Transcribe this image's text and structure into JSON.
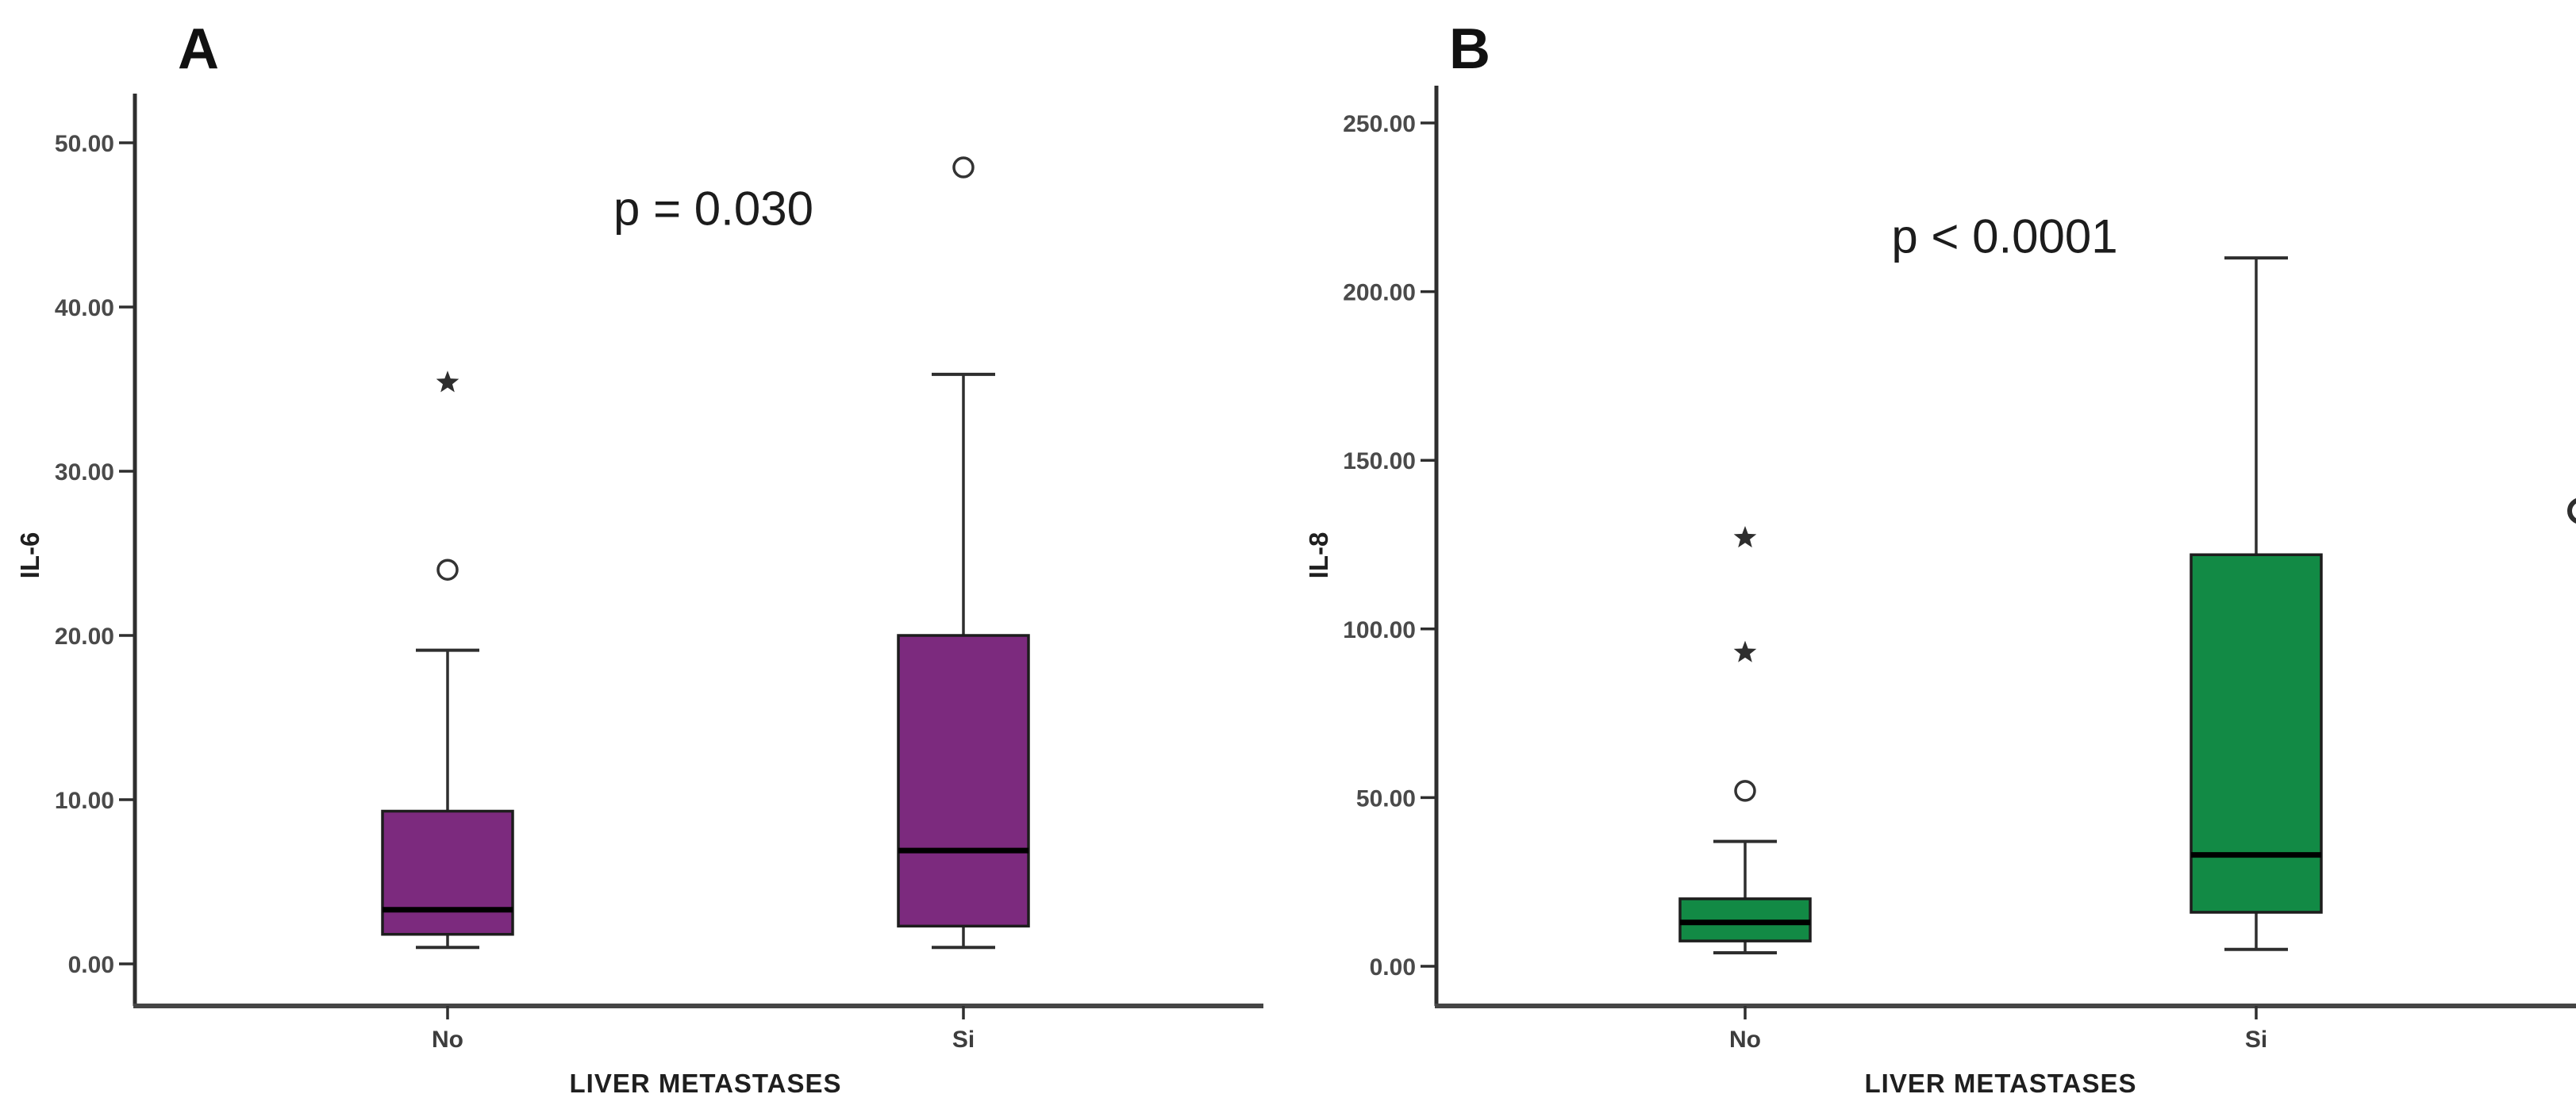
{
  "figure": {
    "background": "#ffffff",
    "axis_color": "#2e2e2e",
    "tick_text_color": "#4a4a4a",
    "category_text_color": "#3d3d3d",
    "box_border_color": "#1d1d1d",
    "median_color": "#000000",
    "outlier_color": "#2e2e2e"
  },
  "chart_data": [
    {
      "type": "box",
      "panel_label": "A",
      "p_label": "p = 0.030",
      "xlabel": "LIVER METASTASES",
      "ylabel": "IL-6",
      "ylim": [
        -2.5,
        53
      ],
      "grid": false,
      "legend": "none",
      "box_color": "#7c2a7e",
      "y_ticks": [
        {
          "value": 0,
          "label": "0.00"
        },
        {
          "value": 10,
          "label": "10.00"
        },
        {
          "value": 20,
          "label": "20.00"
        },
        {
          "value": 30,
          "label": "30.00"
        },
        {
          "value": 40,
          "label": "40.00"
        },
        {
          "value": 50,
          "label": "50.00"
        }
      ],
      "categories": [
        "No",
        "Si"
      ],
      "series": [
        {
          "category": "No",
          "whisker_low": 1.0,
          "q1": 1.8,
          "median": 3.3,
          "q3": 9.3,
          "whisker_high": 19.1,
          "outliers_mild": [
            24.0
          ],
          "outliers_extreme": [
            35.4
          ]
        },
        {
          "category": "Si",
          "whisker_low": 1.0,
          "q1": 2.3,
          "median": 6.9,
          "q3": 20.0,
          "whisker_high": 35.9,
          "outliers_mild": [
            48.5
          ],
          "outliers_extreme": []
        }
      ]
    },
    {
      "type": "box",
      "panel_label": "B",
      "p_label": "p < 0.0001",
      "xlabel": "LIVER METASTASES",
      "ylabel": "IL-8",
      "ylim": [
        -12,
        262
      ],
      "grid": false,
      "legend": "none",
      "box_color": "#128a45",
      "y_ticks": [
        {
          "value": 0,
          "label": "0.00"
        },
        {
          "value": 50,
          "label": "50.00"
        },
        {
          "value": 100,
          "label": "100.00"
        },
        {
          "value": 150,
          "label": "150.00"
        },
        {
          "value": 200,
          "label": "200.00"
        },
        {
          "value": 250,
          "label": "250.00"
        }
      ],
      "categories": [
        "No",
        "Si"
      ],
      "series": [
        {
          "category": "No",
          "whisker_low": 4,
          "q1": 7.5,
          "median": 13,
          "q3": 20,
          "whisker_high": 37,
          "outliers_mild": [
            52
          ],
          "outliers_extreme": [
            93,
            127
          ]
        },
        {
          "category": "Si",
          "whisker_low": 5,
          "q1": 16,
          "median": 33,
          "q3": 122,
          "whisker_high": 210,
          "outliers_mild": [],
          "outliers_extreme": []
        }
      ],
      "edge_clipped_outlier": 135
    }
  ]
}
